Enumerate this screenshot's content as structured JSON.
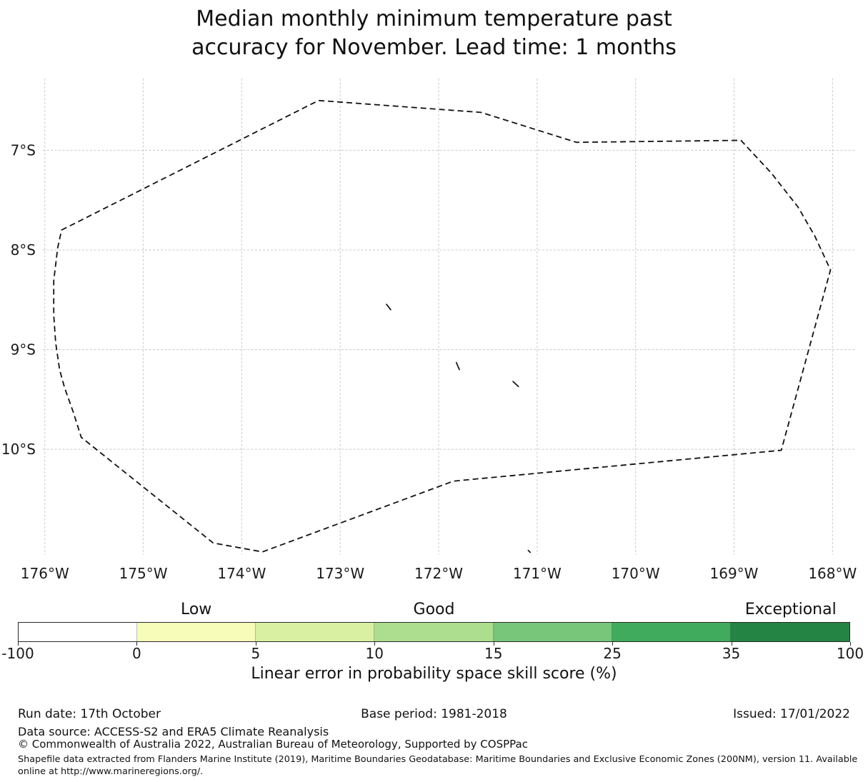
{
  "title": {
    "line1": "Median monthly minimum temperature past",
    "line2": "accuracy for November. Lead time: 1 months"
  },
  "chart_data": {
    "type": "map",
    "title": "Median monthly minimum temperature past accuracy for November. Lead time: 1 months",
    "x_tick_labels": [
      "176°W",
      "175°W",
      "174°W",
      "173°W",
      "172°W",
      "171°W",
      "170°W",
      "169°W",
      "168°W"
    ],
    "x_tick_lons_west": [
      176,
      175,
      174,
      173,
      172,
      171,
      170,
      169,
      168
    ],
    "y_tick_labels": [
      "7°S",
      "8°S",
      "9°S",
      "10°S"
    ],
    "y_tick_lats_south": [
      7,
      8,
      9,
      10
    ],
    "lon_range_west": [
      176.02,
      167.77
    ],
    "lat_range_south": [
      6.28,
      11.06
    ],
    "grid": true,
    "boundary_style": "dashed",
    "eez_boundary_lon_lat": [
      [
        175.83,
        7.8
      ],
      [
        173.22,
        6.5
      ],
      [
        171.57,
        6.62
      ],
      [
        170.6,
        6.92
      ],
      [
        168.93,
        6.9
      ],
      [
        168.62,
        7.23
      ],
      [
        168.35,
        7.57
      ],
      [
        168.18,
        7.86
      ],
      [
        168.02,
        8.2
      ],
      [
        168.52,
        10.01
      ],
      [
        171.85,
        10.32
      ],
      [
        173.79,
        11.03
      ],
      [
        174.29,
        10.94
      ],
      [
        175.63,
        9.88
      ],
      [
        175.71,
        9.63
      ],
      [
        175.8,
        9.38
      ],
      [
        175.85,
        9.2
      ],
      [
        175.89,
        8.93
      ],
      [
        175.91,
        8.65
      ],
      [
        175.91,
        8.31
      ],
      [
        175.87,
        7.98
      ]
    ],
    "islands": [
      {
        "points": [
          [
            172.53,
            8.545
          ],
          [
            172.507,
            8.575
          ],
          [
            172.487,
            8.6
          ]
        ]
      },
      {
        "points": [
          [
            171.82,
            9.13
          ],
          [
            171.79,
            9.2
          ]
        ]
      },
      {
        "points": [
          [
            171.245,
            9.32
          ],
          [
            171.19,
            9.37
          ]
        ]
      },
      {
        "points": [
          [
            171.09,
            11.015
          ],
          [
            171.07,
            11.035
          ]
        ]
      }
    ],
    "colorbar": {
      "boundaries": [
        -100,
        0,
        5,
        10,
        15,
        25,
        35,
        100
      ],
      "tick_labels": [
        "-100",
        "0",
        "5",
        "10",
        "15",
        "25",
        "35",
        "100"
      ],
      "colors": [
        "#ffffff",
        "#f7fcb9",
        "#d9f0a3",
        "#addd8e",
        "#78c679",
        "#41ab5d",
        "#238443"
      ],
      "category_labels": [
        {
          "text": "Low",
          "band_index": 1
        },
        {
          "text": "Good",
          "band_index": 3
        },
        {
          "text": "Exceptional",
          "band_index": 6
        }
      ],
      "caption": "Linear error in probability space skill score (%)"
    }
  },
  "footer": {
    "run_date": "Run date: 17th October",
    "base_period": "Base period: 1981-2018",
    "issued": "Issued: 17/01/2022",
    "data_source": "Data source: ACCESS-S2 and ERA5 Climate Reanalysis",
    "copyright": "© Commonwealth of Australia 2022, Australian Bureau of Meteorology, Supported by COSPPac",
    "shapefile_note": "Shapefile data extracted from Flanders Marine Institute (2019), Maritime Boundaries Geodatabase: Maritime Boundaries and Exclusive Economic Zones (200NM), version 11. Available online at http://www.marineregions.org/."
  }
}
